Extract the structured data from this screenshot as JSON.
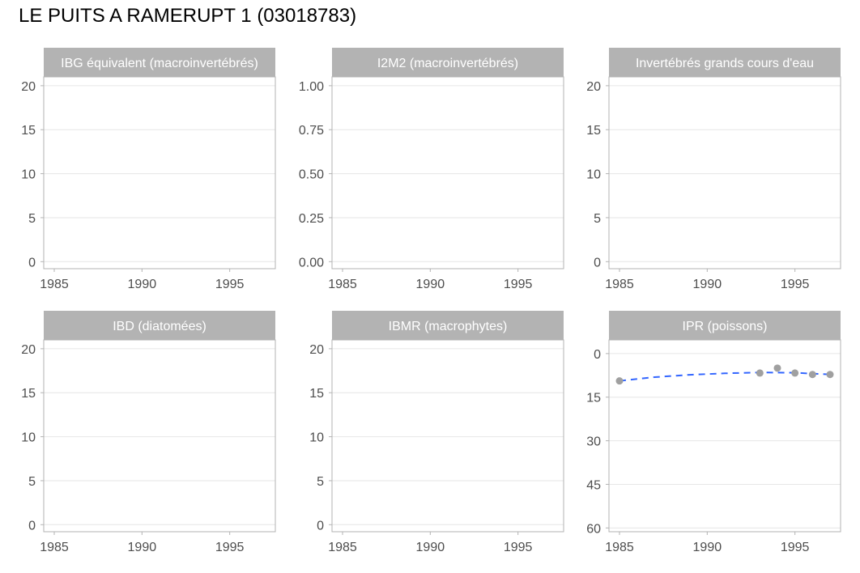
{
  "title": "LE PUITS A RAMERUPT 1 (03018783)",
  "colors": {
    "strip_bg": "#b3b3b3",
    "strip_text": "#ffffff",
    "grid": "#e6e6e6",
    "panel_border": "#b3b3b3",
    "tick_text": "#4d4d4d",
    "point": "#a0a0a0",
    "trend": "#3366ff"
  },
  "chart_data": [
    {
      "type": "scatter",
      "title": "IBG équivalent (macroinvertébrés)",
      "x_ticks": [
        1985,
        1990,
        1995
      ],
      "x_range": [
        1984.4,
        1997.6
      ],
      "y_ticks": [
        0,
        5,
        10,
        15,
        20
      ],
      "y_tick_labels": [
        "0",
        "5",
        "10",
        "15",
        "20"
      ],
      "y_range": [
        -0.8,
        21
      ],
      "y_reversed": false,
      "grid": "horizontal",
      "points": []
    },
    {
      "type": "scatter",
      "title": "I2M2 (macroinvertébrés)",
      "x_ticks": [
        1985,
        1990,
        1995
      ],
      "x_range": [
        1984.4,
        1997.6
      ],
      "y_ticks": [
        0,
        0.25,
        0.5,
        0.75,
        1
      ],
      "y_tick_labels": [
        "0.00",
        "0.25",
        "0.50",
        "0.75",
        "1.00"
      ],
      "y_range": [
        -0.04,
        1.05
      ],
      "y_reversed": false,
      "grid": "horizontal",
      "points": []
    },
    {
      "type": "scatter",
      "title": "Invertébrés grands cours d'eau",
      "x_ticks": [
        1985,
        1990,
        1995
      ],
      "x_range": [
        1984.4,
        1997.6
      ],
      "y_ticks": [
        0,
        5,
        10,
        15,
        20
      ],
      "y_tick_labels": [
        "0",
        "5",
        "10",
        "15",
        "20"
      ],
      "y_range": [
        -0.8,
        21
      ],
      "y_reversed": false,
      "grid": "horizontal",
      "points": []
    },
    {
      "type": "scatter",
      "title": "IBD (diatomées)",
      "x_ticks": [
        1985,
        1990,
        1995
      ],
      "x_range": [
        1984.4,
        1997.6
      ],
      "y_ticks": [
        0,
        5,
        10,
        15,
        20
      ],
      "y_tick_labels": [
        "0",
        "5",
        "10",
        "15",
        "20"
      ],
      "y_range": [
        -0.8,
        21
      ],
      "y_reversed": false,
      "grid": "horizontal",
      "points": []
    },
    {
      "type": "scatter",
      "title": "IBMR (macrophytes)",
      "x_ticks": [
        1985,
        1990,
        1995
      ],
      "x_range": [
        1984.4,
        1997.6
      ],
      "y_ticks": [
        0,
        5,
        10,
        15,
        20
      ],
      "y_tick_labels": [
        "0",
        "5",
        "10",
        "15",
        "20"
      ],
      "y_range": [
        -0.8,
        21
      ],
      "y_reversed": false,
      "grid": "horizontal",
      "points": []
    },
    {
      "type": "scatter",
      "title": "IPR (poissons)",
      "x_ticks": [
        1985,
        1990,
        1995
      ],
      "x_range": [
        1984.4,
        1997.6
      ],
      "y_ticks": [
        0,
        15,
        30,
        45,
        60
      ],
      "y_tick_labels": [
        "0",
        "15",
        "30",
        "45",
        "60"
      ],
      "y_range": [
        61.3,
        -4.7
      ],
      "y_reversed": true,
      "grid": "horizontal",
      "points": [
        {
          "x": 1985,
          "y": 9.4
        },
        {
          "x": 1993,
          "y": 6.7
        },
        {
          "x": 1994,
          "y": 5.0
        },
        {
          "x": 1995,
          "y": 6.7
        },
        {
          "x": 1996,
          "y": 7.2
        },
        {
          "x": 1997,
          "y": 7.2
        }
      ],
      "trend": {
        "style": "dashed",
        "x": [
          1985,
          1987,
          1989,
          1991,
          1993,
          1995,
          1997
        ],
        "y": [
          9.4,
          8.1,
          7.3,
          6.8,
          6.5,
          6.6,
          7.2
        ]
      }
    }
  ]
}
